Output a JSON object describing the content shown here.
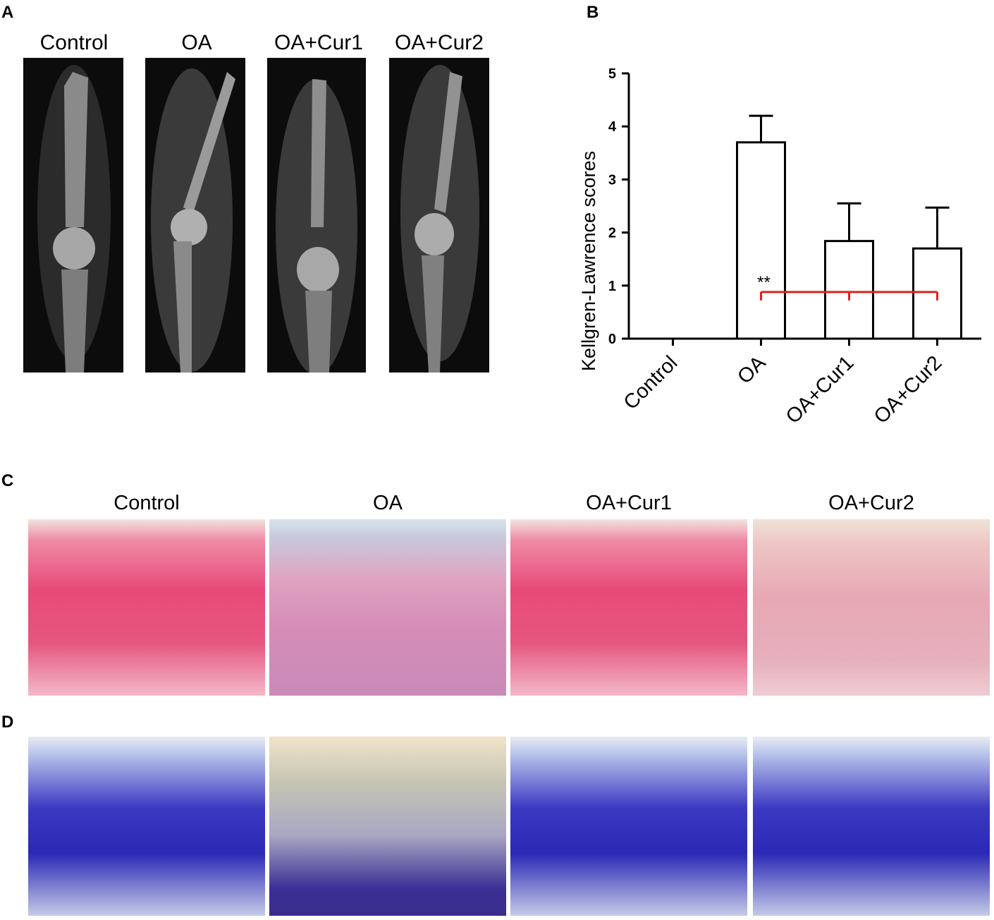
{
  "panels": {
    "a": "A",
    "b": "B",
    "c": "C",
    "d": "D"
  },
  "group_labels": [
    "Control",
    "OA",
    "OA+Cur1",
    "OA+Cur2"
  ],
  "chart_data": {
    "type": "bar",
    "categories": [
      "Control",
      "OA",
      "OA+Cur1",
      "OA+Cur2"
    ],
    "values": [
      0,
      3.7,
      1.84,
      1.7
    ],
    "errors": [
      0,
      0.5,
      0.71,
      0.77
    ],
    "ylabel": "Kellgren-Lawrence scores",
    "ylim": [
      0,
      5
    ],
    "yticks": [
      "0",
      "1",
      "2",
      "3",
      "4",
      "5"
    ],
    "significance": {
      "label": "**",
      "bracket_value": 0.88,
      "from": "OA",
      "to": [
        "OA+Cur1",
        "OA+Cur2"
      ],
      "color": "#e02020"
    },
    "bar_fill": "#ffffff",
    "bar_stroke": "#000000",
    "grid": false
  }
}
